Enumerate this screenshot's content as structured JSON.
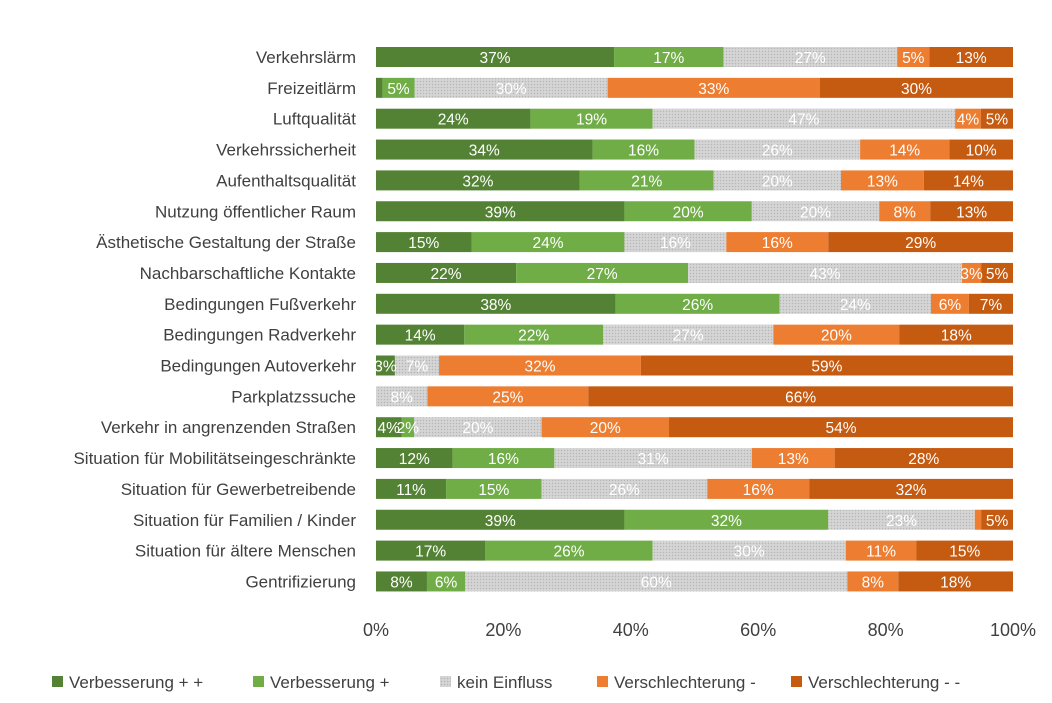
{
  "chart_data": {
    "type": "bar",
    "orientation": "horizontal",
    "stacked": true,
    "percent_stacked": true,
    "categories": [
      "Verkehrslärm",
      "Freizeitlärm",
      "Luftqualität",
      "Verkehrssicherheit",
      "Aufenthaltsqualität",
      "Nutzung öffentlicher Raum",
      "Ästhetische Gestaltung der Straße",
      "Nachbarschaftliche Kontakte",
      "Bedingungen Fußverkehr",
      "Bedingungen Radverkehr",
      "Bedingungen Autoverkehr",
      "Parkplatzssuche",
      "Verkehr in angrenzenden Straßen",
      "Situation für Mobilitätseingeschränkte",
      "Situation für Gewerbetreibende",
      "Situation für Familien / Kinder",
      "Situation für ältere Menschen",
      "Gentrifizierung"
    ],
    "series": [
      {
        "name": "Verbesserung + +",
        "color": "#548235",
        "pattern": "solid",
        "values": [
          37,
          1,
          24,
          34,
          32,
          39,
          15,
          22,
          38,
          14,
          3,
          0,
          4,
          12,
          11,
          39,
          17,
          8
        ]
      },
      {
        "name": "Verbesserung +",
        "color": "#70ad47",
        "pattern": "solid",
        "values": [
          17,
          5,
          19,
          16,
          21,
          20,
          24,
          27,
          26,
          22,
          0,
          0,
          2,
          16,
          15,
          32,
          26,
          6
        ]
      },
      {
        "name": "kein Einfluss",
        "color": "#d0d0d0",
        "pattern": "dotted",
        "values": [
          27,
          30,
          47,
          26,
          20,
          20,
          16,
          43,
          24,
          27,
          7,
          8,
          20,
          31,
          26,
          23,
          30,
          60
        ]
      },
      {
        "name": "Verschlechterung -",
        "color": "#ed7d31",
        "pattern": "solid",
        "values": [
          5,
          33,
          4,
          14,
          13,
          8,
          16,
          3,
          6,
          20,
          32,
          25,
          20,
          13,
          16,
          1,
          11,
          8
        ]
      },
      {
        "name": "Verschlechterung - -",
        "color": "#c55a11",
        "pattern": "solid",
        "values": [
          13,
          30,
          5,
          10,
          14,
          13,
          29,
          5,
          7,
          18,
          59,
          66,
          54,
          28,
          32,
          5,
          15,
          18
        ]
      }
    ],
    "data_labels": [
      [
        "37%",
        "",
        "24%",
        "34%",
        "32%",
        "39%",
        "15%",
        "22%",
        "38%",
        "14%",
        "3%",
        "",
        "4%",
        "12%",
        "11%",
        "39%",
        "17%",
        "8%"
      ],
      [
        "17%",
        "5%",
        "19%",
        "16%",
        "21%",
        "20%",
        "24%",
        "27%",
        "26%",
        "22%",
        "",
        "",
        "2%",
        "16%",
        "15%",
        "32%",
        "26%",
        "6%"
      ],
      [
        "27%",
        "30%",
        "47%",
        "26%",
        "20%",
        "20%",
        "16%",
        "43%",
        "24%",
        "27%",
        "7%",
        "8%",
        "20%",
        "31%",
        "26%",
        "23%",
        "30%",
        "60%"
      ],
      [
        "5%",
        "33%",
        "4%",
        "14%",
        "13%",
        "8%",
        "16%",
        "3%",
        "6%",
        "20%",
        "32%",
        "25%",
        "20%",
        "13%",
        "16%",
        "",
        "11%",
        "8%"
      ],
      [
        "13%",
        "30%",
        "5%",
        "10%",
        "14%",
        "13%",
        "29%",
        "5%",
        "7%",
        "18%",
        "59%",
        "66%",
        "54%",
        "28%",
        "32%",
        "5%",
        "15%",
        "18%"
      ]
    ],
    "xlim": [
      0,
      100
    ],
    "xticks": [
      0,
      20,
      40,
      60,
      80,
      100
    ],
    "xtick_labels": [
      "0%",
      "20%",
      "40%",
      "60%",
      "80%",
      "100%"
    ],
    "title": "",
    "xlabel": "",
    "ylabel": "",
    "grid": false,
    "legend_position": "bottom"
  }
}
